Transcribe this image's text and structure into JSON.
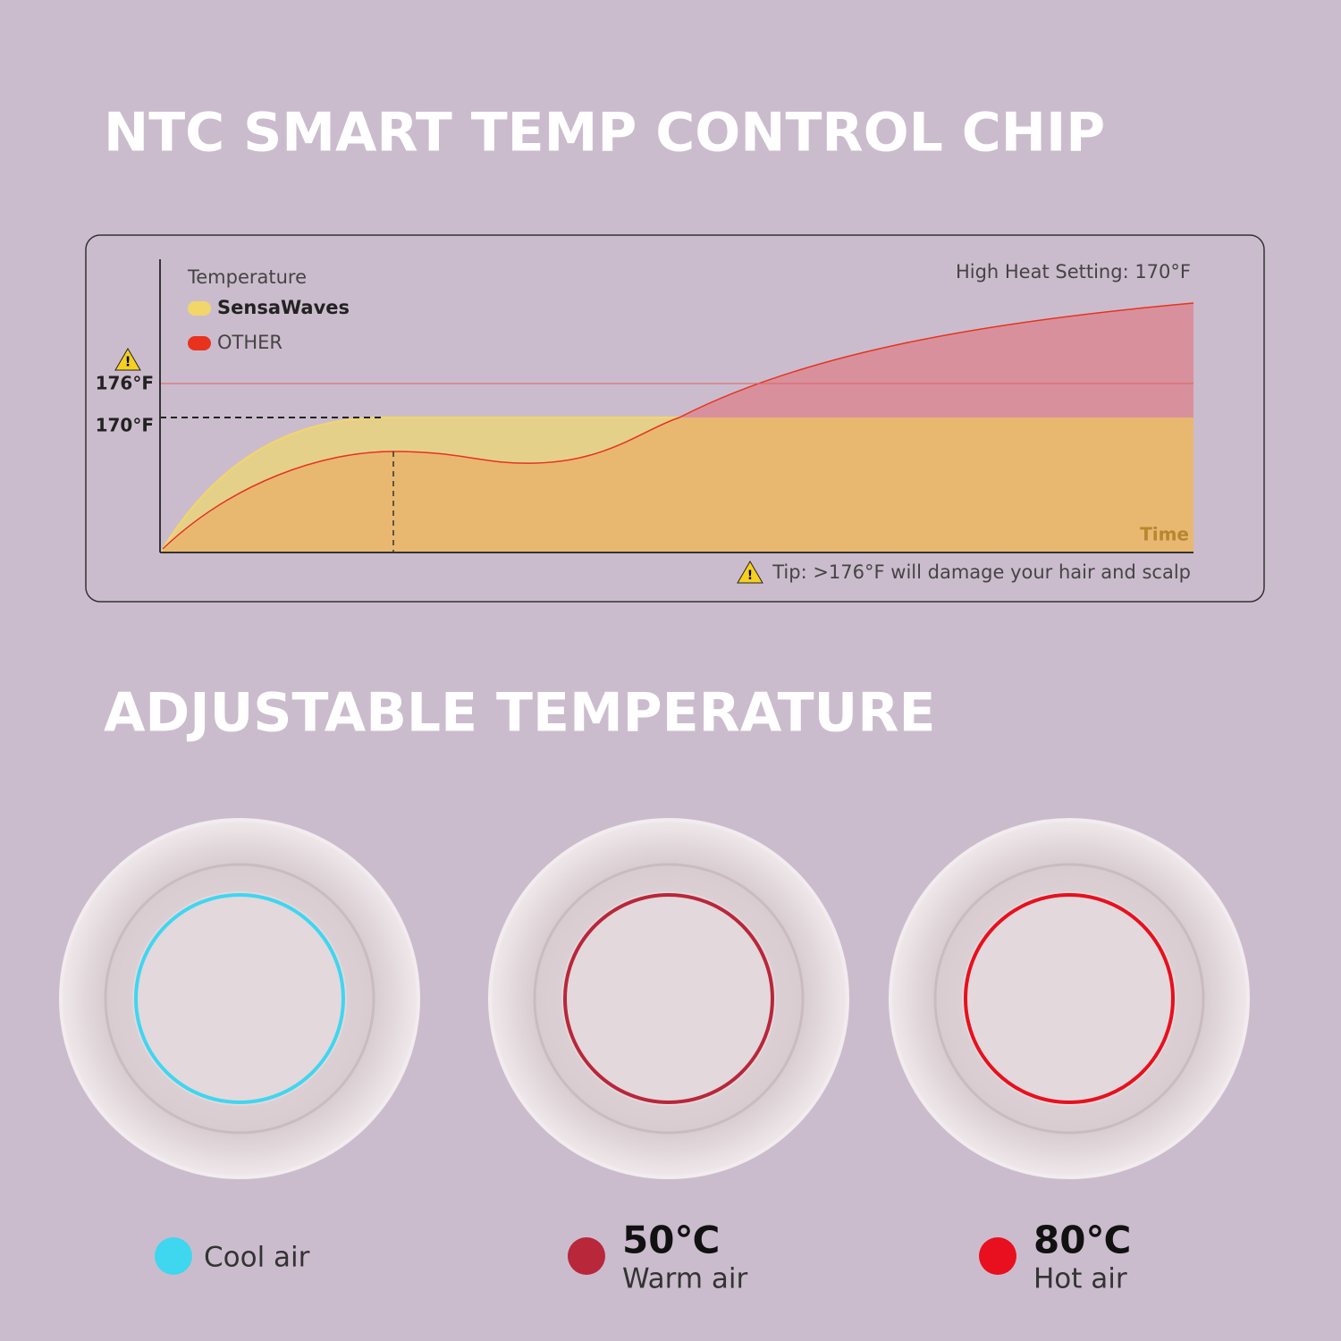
{
  "header": {
    "title": "NTC SMART TEMP CONTROL CHIP"
  },
  "graph": {
    "y_label": "Temperature",
    "legend": [
      {
        "name": "SensaWaves",
        "color": "#f2d66a"
      },
      {
        "name": "OTHER",
        "color": "#e8321e"
      }
    ],
    "ticks": [
      "176°F",
      "170°F"
    ],
    "setting": "High Heat Setting: 170°F",
    "x_label": "Time",
    "tip": "Tip: >176°F will damage your hair and scalp"
  },
  "section": {
    "title": "ADJUSTABLE TEMPERATURE"
  },
  "modes": [
    {
      "name": "Cool air",
      "color": "#3fd6f0"
    },
    {
      "temp": "50℃",
      "name": "Warm air",
      "color": "#b8273a"
    },
    {
      "temp": "80℃",
      "name": "Hot air",
      "color": "#e8101e"
    }
  ]
}
